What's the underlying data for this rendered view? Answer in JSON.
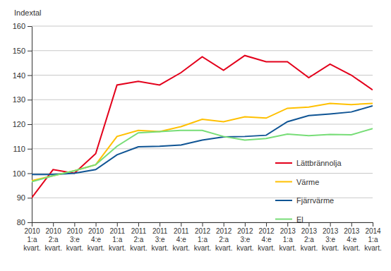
{
  "chart_data": {
    "type": "line",
    "y_label": "Indextal",
    "categories": [
      "2010 1:a kvart.",
      "2010 2:a kvart.",
      "2010 3:e kvart.",
      "2010 4:e kvart.",
      "2011 1:a kvart.",
      "2011 2:a kvart.",
      "2011 3:e kvart.",
      "2011 4:e kvart.",
      "2012 1:a kvart.",
      "2012 2:a kvart.",
      "2012 3:e kvart.",
      "2012 4:e kvart.",
      "2013 1:a kvart.",
      "2013 2:a kvart.",
      "2013 3:e kvart.",
      "2013 4:e kvart.",
      "2014 1:a kvart."
    ],
    "series": [
      {
        "name": "Lättbrännolja",
        "color": "#e3001b",
        "values": [
          90,
          101.5,
          100,
          108,
          136,
          137.5,
          136,
          141,
          147.5,
          142,
          148,
          145.5,
          145.5,
          139,
          144.5,
          140,
          134
        ]
      },
      {
        "name": "Värme",
        "color": "#ffc000",
        "values": [
          97,
          99,
          101,
          103.5,
          115,
          117.5,
          117,
          119,
          122,
          121,
          123,
          122.5,
          126.5,
          127,
          128.5,
          128,
          128.5
        ]
      },
      {
        "name": "Fjärrvärme",
        "color": "#0f5494",
        "values": [
          99.5,
          99.5,
          100,
          101.5,
          107.5,
          110.8,
          111,
          111.5,
          113.5,
          114.8,
          115,
          115.5,
          121,
          123.5,
          124.2,
          125,
          127.5
        ]
      },
      {
        "name": "El",
        "color": "#77dd77",
        "values": [
          96.5,
          99,
          101,
          103.5,
          111,
          116.5,
          117,
          117.5,
          117.5,
          115,
          113.5,
          114.2,
          116,
          115.3,
          115.8,
          115.7,
          118.2
        ]
      }
    ],
    "ylim": [
      80,
      160
    ],
    "yticks": [
      80,
      90,
      100,
      110,
      120,
      130,
      140,
      150,
      160
    ],
    "grid": true,
    "legend": "right"
  }
}
